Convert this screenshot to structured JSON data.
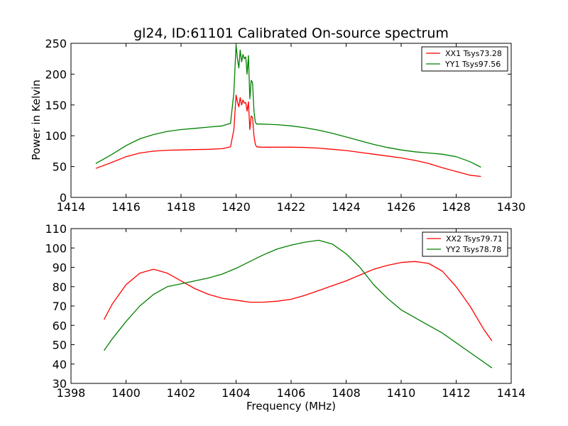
{
  "chart_data": [
    {
      "type": "line",
      "title": "gl24, ID:61101 Calibrated On-source spectrum",
      "xlabel": "",
      "ylabel": "Power in Kelvin",
      "xlim": [
        1414,
        1430
      ],
      "ylim": [
        0,
        250
      ],
      "xticks": [
        "1414",
        "1416",
        "1418",
        "1420",
        "1422",
        "1424",
        "1426",
        "1428",
        "1430"
      ],
      "yticks": [
        "0",
        "50",
        "100",
        "150",
        "200",
        "250"
      ],
      "grid": false,
      "legend": "top-right",
      "series": [
        {
          "name": "XX1 Tsys73.28",
          "color": "#ff0000",
          "x": [
            1414.9,
            1415.5,
            1416.0,
            1416.5,
            1417.0,
            1417.5,
            1418.0,
            1418.5,
            1419.0,
            1419.5,
            1419.8,
            1419.92,
            1420.0,
            1420.05,
            1420.1,
            1420.15,
            1420.2,
            1420.25,
            1420.3,
            1420.35,
            1420.4,
            1420.45,
            1420.5,
            1420.55,
            1420.6,
            1420.65,
            1420.7,
            1420.75,
            1420.9,
            1421.5,
            1422.0,
            1422.5,
            1423.0,
            1423.5,
            1424.0,
            1424.5,
            1425.0,
            1425.5,
            1426.0,
            1426.5,
            1427.0,
            1427.5,
            1428.0,
            1428.5,
            1428.9
          ],
          "y": [
            47,
            57,
            66,
            72,
            75,
            76.5,
            77,
            77.5,
            78,
            79,
            82,
            110,
            166,
            155,
            147,
            162,
            150,
            158,
            153,
            154,
            140,
            155,
            110,
            132,
            130,
            100,
            86,
            82,
            81.5,
            81.5,
            81.5,
            81,
            80,
            78,
            76,
            73,
            70,
            67,
            64,
            60,
            55,
            48,
            42,
            36,
            34
          ]
        },
        {
          "name": "YY1 Tsys97.56",
          "color": "#008000",
          "x": [
            1414.9,
            1415.5,
            1416.0,
            1416.5,
            1417.0,
            1417.5,
            1418.0,
            1418.5,
            1419.0,
            1419.5,
            1419.8,
            1419.92,
            1420.0,
            1420.05,
            1420.1,
            1420.15,
            1420.2,
            1420.25,
            1420.3,
            1420.35,
            1420.4,
            1420.45,
            1420.5,
            1420.55,
            1420.6,
            1420.65,
            1420.7,
            1420.75,
            1420.9,
            1421.5,
            1422.0,
            1422.5,
            1423.0,
            1423.5,
            1424.0,
            1424.5,
            1425.0,
            1425.5,
            1426.0,
            1426.5,
            1427.0,
            1427.5,
            1428.0,
            1428.5,
            1428.9
          ],
          "y": [
            55,
            70,
            84,
            95,
            102,
            107,
            110,
            112,
            114,
            116,
            120,
            170,
            248,
            225,
            210,
            239,
            220,
            232,
            225,
            228,
            200,
            230,
            160,
            190,
            186,
            140,
            122,
            119,
            119,
            118,
            116,
            113,
            109,
            104,
            98,
            92,
            86,
            81,
            77,
            74,
            72,
            70,
            66,
            58,
            49
          ]
        }
      ]
    },
    {
      "type": "line",
      "title": "",
      "xlabel": "Frequency (MHz)",
      "ylabel": "",
      "xlim": [
        1398,
        1414
      ],
      "ylim": [
        30,
        110
      ],
      "xticks": [
        "1398",
        "1400",
        "1402",
        "1404",
        "1406",
        "1408",
        "1410",
        "1412",
        "1414"
      ],
      "yticks": [
        "30",
        "40",
        "50",
        "60",
        "70",
        "80",
        "90",
        "100",
        "110"
      ],
      "grid": false,
      "legend": "top-right",
      "series": [
        {
          "name": "XX2 Tsys79.71",
          "color": "#ff0000",
          "x": [
            1399.2,
            1399.5,
            1400.0,
            1400.5,
            1401.0,
            1401.5,
            1402.0,
            1402.5,
            1403.0,
            1403.5,
            1404.0,
            1404.5,
            1405.0,
            1405.5,
            1406.0,
            1406.5,
            1407.0,
            1407.5,
            1408.0,
            1408.5,
            1409.0,
            1409.5,
            1410.0,
            1410.5,
            1411.0,
            1411.5,
            1412.0,
            1412.5,
            1413.0,
            1413.3
          ],
          "y": [
            63,
            71,
            81,
            87,
            89,
            87,
            83,
            79,
            76,
            74,
            73,
            72,
            72,
            72.5,
            73.5,
            75.5,
            78,
            80.5,
            83,
            86,
            89,
            91,
            92.5,
            93,
            92,
            88,
            80,
            70,
            58,
            52
          ]
        },
        {
          "name": "YY2 Tsys78.78",
          "color": "#008000",
          "x": [
            1399.2,
            1399.5,
            1400.0,
            1400.5,
            1401.0,
            1401.5,
            1402.0,
            1402.5,
            1403.0,
            1403.5,
            1404.0,
            1404.5,
            1405.0,
            1405.5,
            1406.0,
            1406.5,
            1407.0,
            1407.5,
            1408.0,
            1408.5,
            1409.0,
            1409.5,
            1410.0,
            1410.5,
            1411.0,
            1411.5,
            1412.0,
            1412.5,
            1413.0,
            1413.3
          ],
          "y": [
            47,
            53,
            62,
            70,
            76,
            80,
            81.5,
            83,
            84.5,
            86.5,
            89.5,
            93,
            96.5,
            99.5,
            101.5,
            103,
            104,
            102,
            97,
            90,
            81,
            74,
            68,
            64,
            60,
            56,
            51,
            46,
            41,
            38
          ]
        }
      ]
    }
  ]
}
